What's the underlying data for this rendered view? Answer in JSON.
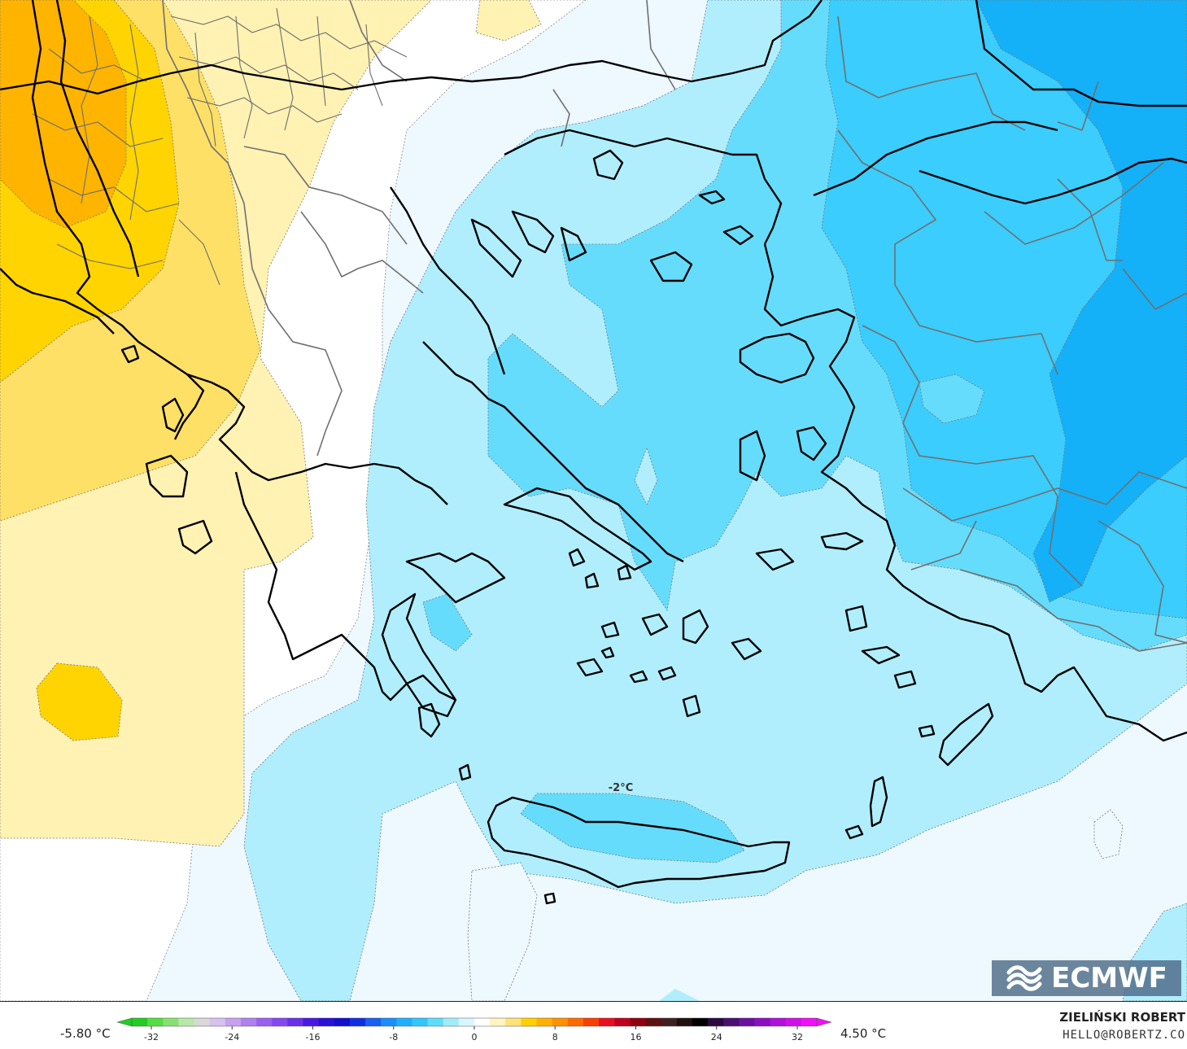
{
  "map": {
    "contour_label": "-2°C",
    "fill_colors": {
      "orange": "#ffb400",
      "gold": "#ffd400",
      "yellow": "#ffe066",
      "pale_yellow": "#fff2b3",
      "white": "#ffffff",
      "very_light_blue": "#eef8ff",
      "light_blue": "#b0eefd",
      "blue": "#66dcfc",
      "mid_blue": "#3acdfd",
      "deep_blue": "#14b0f8"
    },
    "coastline_color": "#000000",
    "border_color": "#707070"
  },
  "logo": {
    "text": "ECMWF",
    "icon": "ecmwf-wave-icon"
  },
  "colorbar": {
    "min_label": "-5.80 °C",
    "max_label": "4.50 °C",
    "ticks": [
      "-32",
      "-24",
      "-16",
      "-8",
      "0",
      "8",
      "16",
      "24",
      "32"
    ],
    "colors": [
      "#22cc22",
      "#55dd44",
      "#88e070",
      "#b8e8a8",
      "#d8d8d8",
      "#d8c0f0",
      "#c8a0f0",
      "#b080f0",
      "#9a60f0",
      "#8448f0",
      "#6a30e8",
      "#4a18e0",
      "#2a10d8",
      "#1010d0",
      "#1030e0",
      "#1860f0",
      "#1890f8",
      "#20b0fb",
      "#30c8fc",
      "#60dcfc",
      "#a0ecfd",
      "#d8f6ff",
      "#ffffff",
      "#fff5c0",
      "#ffe27a",
      "#ffd000",
      "#ffb000",
      "#ff9000",
      "#ff6a00",
      "#f84000",
      "#e81020",
      "#c00020",
      "#900010",
      "#601010",
      "#402020",
      "#201010",
      "#000000",
      "#2a0a40",
      "#4a1070",
      "#6a10a0",
      "#8c10c0",
      "#b010d8",
      "#d010e8",
      "#f010f8"
    ]
  },
  "author": {
    "name": "ZIELIŃSKI ROBERT",
    "email": "HELLO@ROBERTZ.CO"
  }
}
